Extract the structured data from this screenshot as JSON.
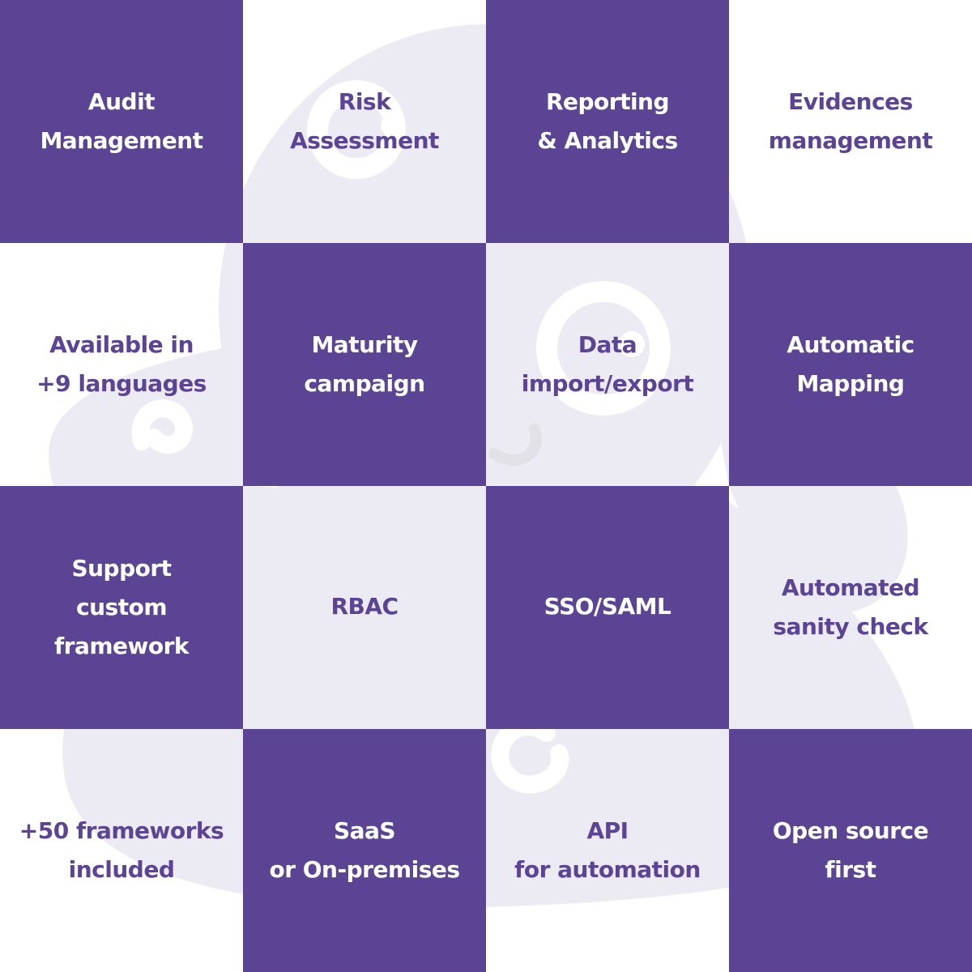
{
  "colors": {
    "purple": "#5c4494",
    "background": "#ffffff",
    "mascot_tint": "#ecebf4"
  },
  "tiles": [
    {
      "text": "Audit\nManagement",
      "style": "dark"
    },
    {
      "text": "Risk\nAssessment",
      "style": "light"
    },
    {
      "text": "Reporting\n& Analytics",
      "style": "dark"
    },
    {
      "text": "Evidences\nmanagement",
      "style": "light"
    },
    {
      "text": "Available in\n+9 languages",
      "style": "light"
    },
    {
      "text": "Maturity\ncampaign",
      "style": "dark"
    },
    {
      "text": "Data\nimport/export",
      "style": "light"
    },
    {
      "text": "Automatic\nMapping",
      "style": "dark"
    },
    {
      "text": "Support\ncustom framework",
      "style": "dark"
    },
    {
      "text": "RBAC",
      "style": "light"
    },
    {
      "text": "SSO/SAML",
      "style": "dark"
    },
    {
      "text": "Automated\nsanity check",
      "style": "light"
    },
    {
      "text": "+50 frameworks\nincluded",
      "style": "light"
    },
    {
      "text": "SaaS\nor On-premises",
      "style": "dark"
    },
    {
      "text": "API\nfor automation",
      "style": "light"
    },
    {
      "text": "Open source\nfirst",
      "style": "dark"
    }
  ]
}
